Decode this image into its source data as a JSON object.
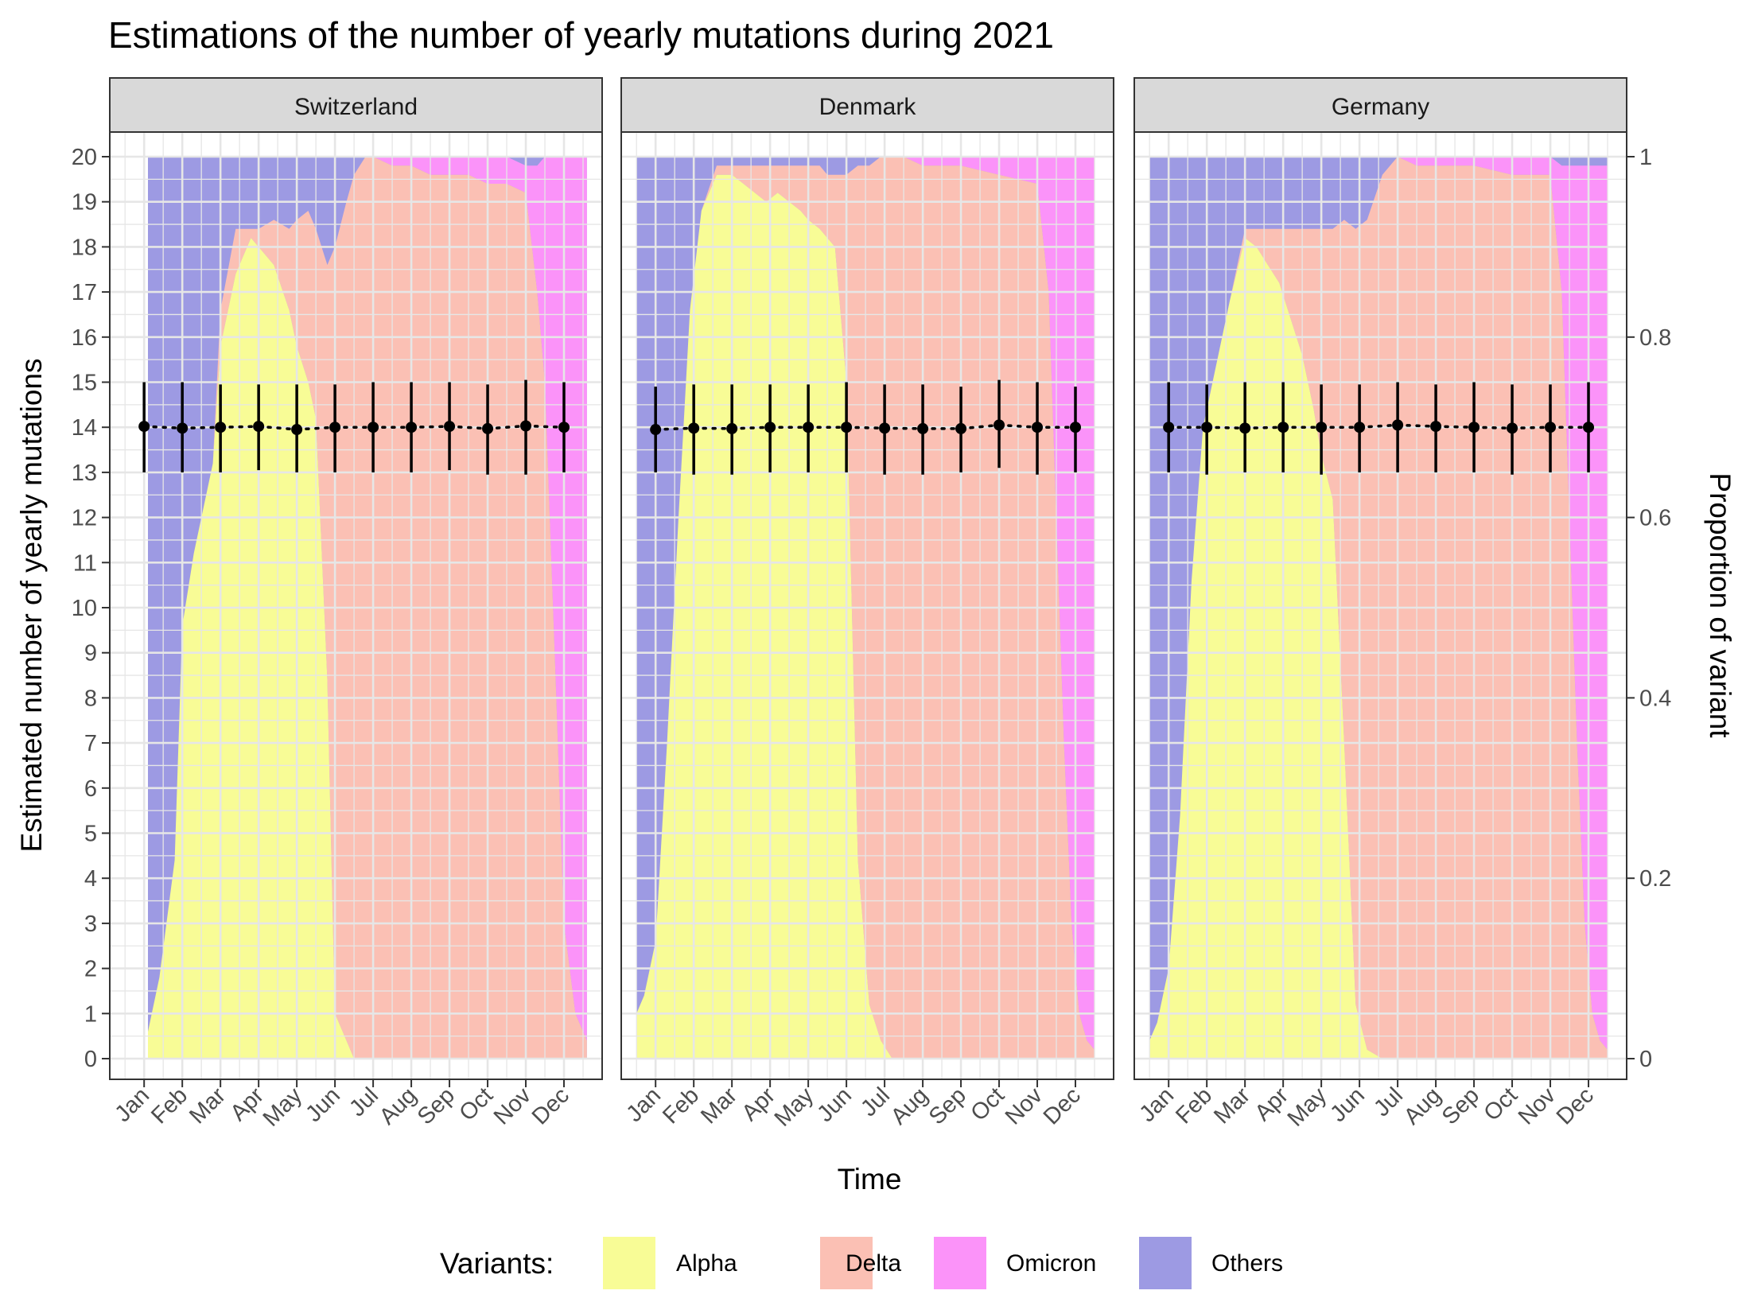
{
  "chart_data": {
    "type": "area",
    "title": "Estimations of the number of yearly mutations during 2021",
    "xlabel": "Time",
    "ylabel": "Estimated number of yearly mutations",
    "y2label": "Proportion of variant",
    "ylim": [
      0,
      20
    ],
    "y2lim": [
      0,
      1
    ],
    "yticks": [
      "0",
      "1",
      "2",
      "3",
      "4",
      "5",
      "6",
      "7",
      "8",
      "9",
      "10",
      "11",
      "12",
      "13",
      "14",
      "15",
      "16",
      "17",
      "18",
      "19",
      "20"
    ],
    "y2ticks": [
      "0",
      "0.2",
      "0.4",
      "0.6",
      "0.8",
      "1"
    ],
    "months": [
      "Jan",
      "Feb",
      "Mar",
      "Apr",
      "May",
      "Jun",
      "Jul",
      "Aug",
      "Sep",
      "Oct",
      "Nov",
      "Dec"
    ],
    "grid": true,
    "legend": {
      "title": "Variants:",
      "position": "bottom",
      "items": [
        {
          "name": "Alpha",
          "color": "#f8fc96"
        },
        {
          "name": "Delta",
          "color": "#fbc0b4"
        },
        {
          "name": "Omicron",
          "color": "#fb93f9"
        },
        {
          "name": "Others",
          "color": "#9d9ae3"
        }
      ]
    },
    "panels": [
      {
        "name": "Switzerland",
        "area_x": [
          1.1,
          1.4,
          1.8,
          2.0,
          2.3,
          2.8,
          3.0,
          3.4,
          3.8,
          4.0,
          4.4,
          4.8,
          5.0,
          5.3,
          5.5,
          5.8,
          6.0,
          6.3,
          6.5,
          6.8,
          7.0,
          7.5,
          8.0,
          8.5,
          9.0,
          9.5,
          10.0,
          10.5,
          11.0,
          11.3,
          11.5,
          11.8,
          12.0,
          12.3,
          12.6
        ],
        "alpha": [
          0.03,
          0.09,
          0.22,
          0.48,
          0.56,
          0.66,
          0.79,
          0.87,
          0.91,
          0.9,
          0.88,
          0.83,
          0.79,
          0.75,
          0.71,
          0.42,
          0.05,
          0.02,
          0.0,
          0.0,
          0.0,
          0.0,
          0.0,
          0.0,
          0.0,
          0.0,
          0.0,
          0.0,
          0.0,
          0.0,
          0.0,
          0.0,
          0.0,
          0.0,
          0.0
        ],
        "delta": [
          0.0,
          0.0,
          0.0,
          0.0,
          0.0,
          0.0,
          0.04,
          0.05,
          0.01,
          0.02,
          0.05,
          0.09,
          0.14,
          0.19,
          0.21,
          0.46,
          0.85,
          0.93,
          0.98,
          1.0,
          1.0,
          0.99,
          0.99,
          0.98,
          0.98,
          0.98,
          0.97,
          0.97,
          0.96,
          0.85,
          0.75,
          0.4,
          0.15,
          0.05,
          0.02
        ],
        "omicron": [
          0.0,
          0.0,
          0.0,
          0.0,
          0.0,
          0.0,
          0.0,
          0.0,
          0.0,
          0.0,
          0.0,
          0.0,
          0.0,
          0.0,
          0.0,
          0.0,
          0.0,
          0.0,
          0.0,
          0.0,
          0.0,
          0.01,
          0.01,
          0.02,
          0.02,
          0.02,
          0.03,
          0.03,
          0.03,
          0.14,
          0.25,
          0.6,
          0.85,
          0.95,
          0.98
        ],
        "est_x": [
          1,
          2,
          3,
          4,
          5,
          6,
          7,
          8,
          9,
          10,
          11,
          12
        ],
        "est": [
          14.02,
          13.98,
          14.0,
          14.02,
          13.95,
          14.0,
          14.0,
          14.0,
          14.02,
          13.97,
          14.03,
          14.0
        ],
        "lower": [
          13.0,
          13.0,
          13.0,
          13.05,
          13.0,
          13.0,
          13.0,
          13.0,
          13.05,
          12.95,
          12.95,
          13.0
        ],
        "upper": [
          15.0,
          15.0,
          14.95,
          14.95,
          14.95,
          14.95,
          15.0,
          15.0,
          15.0,
          14.95,
          15.05,
          15.0
        ]
      },
      {
        "name": "Denmark",
        "area_x": [
          0.5,
          0.7,
          1.0,
          1.3,
          1.6,
          1.9,
          2.2,
          2.6,
          3.0,
          3.3,
          3.6,
          3.9,
          4.2,
          4.5,
          4.8,
          5.0,
          5.3,
          5.5,
          5.7,
          6.0,
          6.3,
          6.6,
          6.9,
          7.2,
          7.5,
          8.0,
          9.0,
          10.0,
          11.0,
          11.3,
          11.5,
          11.7,
          11.9,
          12.1,
          12.3,
          12.5
        ],
        "alpha": [
          0.05,
          0.07,
          0.13,
          0.35,
          0.6,
          0.83,
          0.94,
          0.98,
          0.98,
          0.97,
          0.96,
          0.95,
          0.96,
          0.95,
          0.94,
          0.93,
          0.92,
          0.91,
          0.9,
          0.75,
          0.22,
          0.06,
          0.02,
          0.0,
          0.0,
          0.0,
          0.0,
          0.0,
          0.0,
          0.0,
          0.0,
          0.0,
          0.0,
          0.0,
          0.0,
          0.0
        ],
        "delta": [
          0.0,
          0.0,
          0.0,
          0.0,
          0.0,
          0.0,
          0.0,
          0.01,
          0.01,
          0.02,
          0.03,
          0.04,
          0.03,
          0.04,
          0.05,
          0.06,
          0.07,
          0.07,
          0.08,
          0.23,
          0.77,
          0.93,
          0.98,
          1.0,
          1.0,
          0.99,
          0.99,
          0.98,
          0.97,
          0.85,
          0.6,
          0.35,
          0.15,
          0.05,
          0.02,
          0.01
        ],
        "omicron": [
          0.0,
          0.0,
          0.0,
          0.0,
          0.0,
          0.0,
          0.0,
          0.0,
          0.0,
          0.0,
          0.0,
          0.0,
          0.0,
          0.0,
          0.0,
          0.0,
          0.0,
          0.0,
          0.0,
          0.0,
          0.0,
          0.0,
          0.0,
          0.0,
          0.0,
          0.01,
          0.01,
          0.02,
          0.03,
          0.15,
          0.4,
          0.65,
          0.85,
          0.95,
          0.98,
          0.99
        ],
        "est_x": [
          1,
          2,
          3,
          4,
          5,
          6,
          7,
          8,
          9,
          10,
          11,
          12
        ],
        "est": [
          13.95,
          13.98,
          13.97,
          14.0,
          14.0,
          14.0,
          13.98,
          13.97,
          13.97,
          14.05,
          14.0,
          14.0
        ],
        "lower": [
          13.0,
          12.95,
          12.95,
          13.0,
          13.0,
          13.0,
          12.95,
          12.95,
          13.0,
          13.1,
          12.95,
          13.0
        ],
        "upper": [
          14.9,
          14.95,
          14.95,
          14.95,
          14.95,
          15.0,
          14.95,
          14.95,
          14.9,
          15.05,
          15.0,
          14.9
        ]
      },
      {
        "name": "Germany",
        "area_x": [
          0.5,
          0.7,
          1.0,
          1.3,
          1.6,
          1.9,
          2.2,
          2.6,
          3.0,
          3.3,
          3.6,
          3.9,
          4.2,
          4.5,
          4.8,
          5.0,
          5.3,
          5.6,
          5.9,
          6.2,
          6.6,
          7.0,
          7.5,
          8.0,
          9.0,
          10.0,
          11.0,
          11.3,
          11.5,
          11.7,
          11.9,
          12.1,
          12.3,
          12.5
        ],
        "alpha": [
          0.02,
          0.04,
          0.1,
          0.27,
          0.53,
          0.7,
          0.76,
          0.84,
          0.91,
          0.9,
          0.88,
          0.86,
          0.82,
          0.78,
          0.72,
          0.67,
          0.62,
          0.35,
          0.06,
          0.01,
          0.0,
          0.0,
          0.0,
          0.0,
          0.0,
          0.0,
          0.0,
          0.0,
          0.0,
          0.0,
          0.0,
          0.0,
          0.0,
          0.0
        ],
        "delta": [
          0.0,
          0.0,
          0.0,
          0.0,
          0.0,
          0.0,
          0.0,
          0.0,
          0.01,
          0.02,
          0.04,
          0.06,
          0.1,
          0.14,
          0.2,
          0.25,
          0.3,
          0.58,
          0.86,
          0.92,
          0.98,
          1.0,
          0.99,
          0.99,
          0.99,
          0.98,
          0.98,
          0.85,
          0.6,
          0.35,
          0.15,
          0.05,
          0.02,
          0.01
        ],
        "omicron": [
          0.0,
          0.0,
          0.0,
          0.0,
          0.0,
          0.0,
          0.0,
          0.0,
          0.0,
          0.0,
          0.0,
          0.0,
          0.0,
          0.0,
          0.0,
          0.0,
          0.0,
          0.0,
          0.0,
          0.0,
          0.0,
          0.0,
          0.01,
          0.01,
          0.01,
          0.02,
          0.02,
          0.14,
          0.39,
          0.64,
          0.84,
          0.94,
          0.97,
          0.98
        ],
        "est_x": [
          1,
          2,
          3,
          4,
          5,
          6,
          7,
          8,
          9,
          10,
          11,
          12
        ],
        "est": [
          14.0,
          14.0,
          13.98,
          14.0,
          14.0,
          14.0,
          14.05,
          14.02,
          14.0,
          13.98,
          14.0,
          14.0
        ],
        "lower": [
          13.0,
          12.95,
          13.0,
          13.0,
          12.95,
          13.0,
          13.0,
          13.0,
          13.0,
          12.95,
          13.0,
          13.0
        ],
        "upper": [
          15.0,
          14.95,
          15.0,
          15.0,
          14.95,
          14.95,
          15.0,
          14.95,
          15.0,
          14.95,
          14.95,
          15.0
        ]
      }
    ]
  }
}
